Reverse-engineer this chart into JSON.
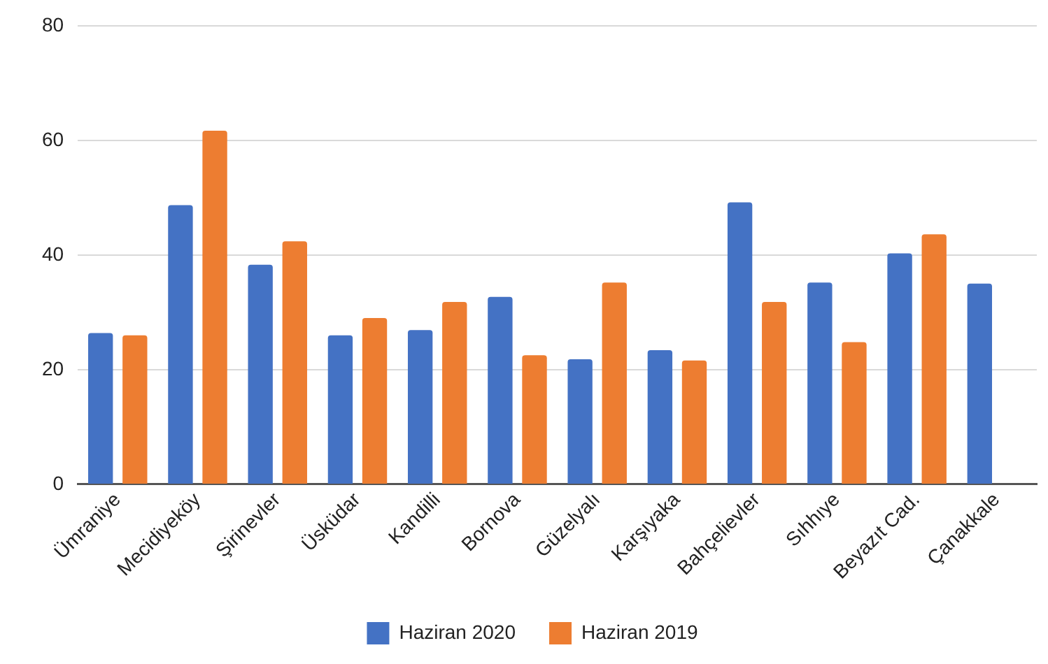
{
  "chart_data": {
    "type": "bar",
    "categories": [
      "Ümraniye",
      "Mecidiyeköy",
      "Şirinevler",
      "Üsküdar",
      "Kandilli",
      "Bornova",
      "Güzelyalı",
      "Karşıyaka",
      "Bahçelievler",
      "Sıhhıye",
      "Beyazıt Cad.",
      "Çanakkale"
    ],
    "series": [
      {
        "name": "Haziran 2020",
        "color": "#4472c4",
        "values": [
          26.4,
          48.7,
          38.3,
          26,
          26.9,
          32.7,
          21.8,
          23.4,
          49.2,
          35.2,
          40.3,
          35
        ]
      },
      {
        "name": "Haziran 2019",
        "color": "#ed7d31",
        "values": [
          26,
          61.7,
          42.4,
          29,
          31.8,
          22.5,
          35.2,
          21.6,
          31.8,
          24.8,
          43.6,
          null
        ]
      }
    ],
    "ylim": [
      0,
      80
    ],
    "yticks": [
      0,
      20,
      40,
      60,
      80
    ],
    "grid": "y",
    "legend": "bottom"
  }
}
